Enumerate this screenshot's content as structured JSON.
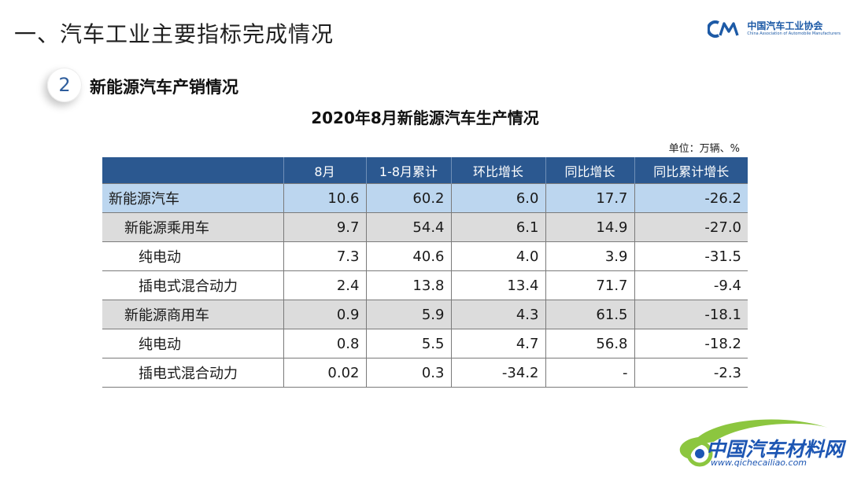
{
  "header": {
    "title": "一、汽车工业主要指标完成情况",
    "logo_cn": "中国汽车工业协会",
    "logo_en": "China Association of Automobile Manufacturers"
  },
  "section": {
    "number": "2",
    "title": "新能源汽车产销情况"
  },
  "table": {
    "title": "2020年8月新能源汽车生产情况",
    "unit": "单位：万辆、%",
    "headers": [
      "",
      "8月",
      "1-8月累计",
      "环比增长",
      "同比增长",
      "同比累计增长"
    ],
    "rows": [
      {
        "level": 0,
        "cells": [
          "新能源汽车",
          "10.6",
          "60.2",
          "6.0",
          "17.7",
          "-26.2"
        ]
      },
      {
        "level": 1,
        "cells": [
          "新能源乘用车",
          "9.7",
          "54.4",
          "6.1",
          "14.9",
          "-27.0"
        ]
      },
      {
        "level": 2,
        "cells": [
          "纯电动",
          "7.3",
          "40.6",
          "4.0",
          "3.9",
          "-31.5"
        ]
      },
      {
        "level": 2,
        "cells": [
          "插电式混合动力",
          "2.4",
          "13.8",
          "13.4",
          "71.7",
          "-9.4"
        ]
      },
      {
        "level": 1,
        "cells": [
          "新能源商用车",
          "0.9",
          "5.9",
          "4.3",
          "61.5",
          "-18.1"
        ]
      },
      {
        "level": 2,
        "cells": [
          "纯电动",
          "0.8",
          "5.5",
          "4.7",
          "56.8",
          "-18.2"
        ]
      },
      {
        "level": 2,
        "cells": [
          "插电式混合动力",
          "0.02",
          "0.3",
          "-34.2",
          "-",
          "-2.3"
        ]
      }
    ]
  },
  "watermark": {
    "name": "中国汽车材料网",
    "url": "www.qichecailiao.com"
  },
  "colors": {
    "header_bg": "#2b5890",
    "row_total_bg": "#bcd6ef",
    "row_sub_bg": "#dcdcdc",
    "brand_blue": "#1d56b3",
    "brand_green": "#8cc63f"
  }
}
